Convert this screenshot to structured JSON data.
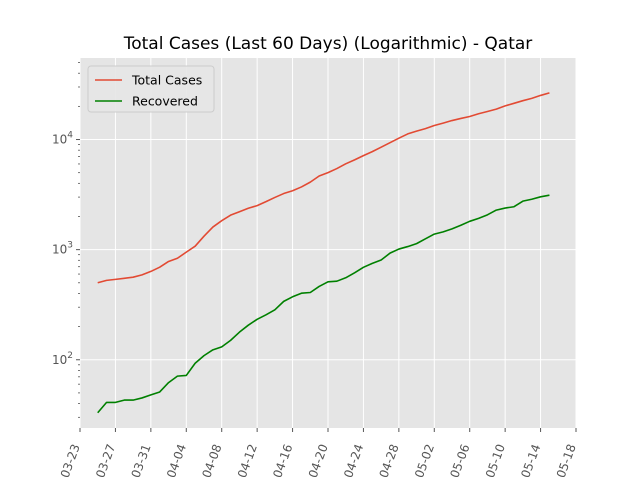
{
  "chart_data": {
    "type": "line",
    "title": "Total Cases (Last 60 Days) (Logarithmic) - Qatar",
    "xlabel": "",
    "ylabel": "",
    "y_scale": "log",
    "ylim": [
      24,
      55000
    ],
    "xlim": [
      "2020-03-23",
      "2020-05-18"
    ],
    "grid": true,
    "legend_position": "top-left",
    "x_tick_labels": [
      "03-23",
      "03-27",
      "03-31",
      "04-04",
      "04-08",
      "04-12",
      "04-16",
      "04-20",
      "04-24",
      "04-28",
      "05-02",
      "05-06",
      "05-10",
      "05-14",
      "05-18"
    ],
    "y_tick_labels": [
      {
        "value": 100,
        "base": "10",
        "exp": "2"
      },
      {
        "value": 1000,
        "base": "10",
        "exp": "3"
      },
      {
        "value": 10000,
        "base": "10",
        "exp": "4"
      }
    ],
    "x": [
      "2020-03-25",
      "2020-03-26",
      "2020-03-27",
      "2020-03-28",
      "2020-03-29",
      "2020-03-30",
      "2020-03-31",
      "2020-04-01",
      "2020-04-02",
      "2020-04-03",
      "2020-04-04",
      "2020-04-05",
      "2020-04-06",
      "2020-04-07",
      "2020-04-08",
      "2020-04-09",
      "2020-04-10",
      "2020-04-11",
      "2020-04-12",
      "2020-04-13",
      "2020-04-14",
      "2020-04-15",
      "2020-04-16",
      "2020-04-17",
      "2020-04-18",
      "2020-04-19",
      "2020-04-20",
      "2020-04-21",
      "2020-04-22",
      "2020-04-23",
      "2020-04-24",
      "2020-04-25",
      "2020-04-26",
      "2020-04-27",
      "2020-04-28",
      "2020-04-29",
      "2020-04-30",
      "2020-05-01",
      "2020-05-02",
      "2020-05-03",
      "2020-05-04",
      "2020-05-05",
      "2020-05-06",
      "2020-05-07",
      "2020-05-08",
      "2020-05-09",
      "2020-05-10",
      "2020-05-11",
      "2020-05-12",
      "2020-05-13",
      "2020-05-14",
      "2020-05-15"
    ],
    "series": [
      {
        "name": "Total Cases",
        "color": "#e24a33",
        "values": [
          500,
          526,
          537,
          549,
          562,
          590,
          634,
          693,
          781,
          835,
          949,
          1075,
          1325,
          1604,
          1832,
          2057,
          2210,
          2376,
          2512,
          2728,
          2979,
          3231,
          3428,
          3711,
          4103,
          4663,
          5008,
          5448,
          6015,
          6533,
          7141,
          7764,
          8525,
          9358,
          10287,
          11244,
          11921,
          12564,
          13409,
          14096,
          14872,
          15551,
          16191,
          17142,
          17972,
          18890,
          20201,
          21331,
          22520,
          23623,
          25149,
          26539
        ]
      },
      {
        "name": "Recovered",
        "color": "#008000",
        "values": [
          33,
          41,
          41,
          43,
          43,
          45,
          48,
          51,
          62,
          71,
          72,
          93,
          109,
          123,
          131,
          150,
          178,
          206,
          233,
          256,
          284,
          339,
          373,
          402,
          408,
          463,
          510,
          517,
          555,
          616,
          691,
          750,
          805,
          929,
          1012,
          1066,
          1134,
          1253,
          1384,
          1450,
          1545,
          1666,
          1808,
          1924,
          2070,
          2286,
          2386,
          2453,
          2757,
          2867,
          3019,
          3124
        ]
      }
    ]
  }
}
